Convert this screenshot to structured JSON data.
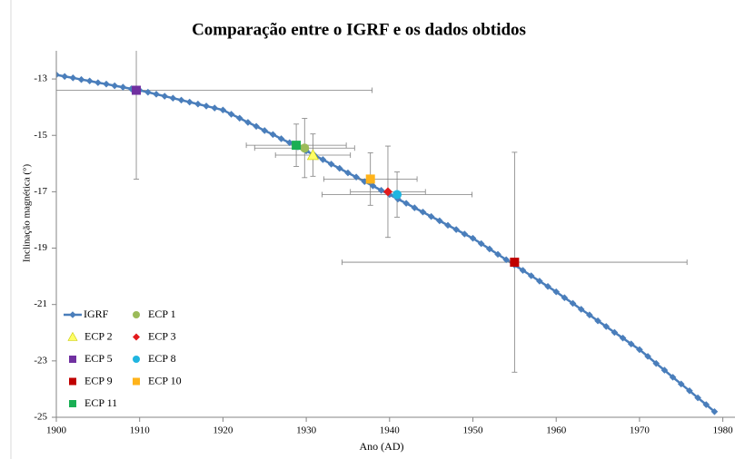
{
  "chart_data": {
    "type": "scatter",
    "title": "Comparação entre o IGRF e os dados obtidos",
    "xlabel": "Ano (AD)",
    "ylabel": "Inclinação magnética (°)",
    "xlim": [
      1900,
      1980
    ],
    "xticks": [
      1900,
      1910,
      1920,
      1930,
      1940,
      1950,
      1960,
      1970,
      1980
    ],
    "ylim": [
      -25,
      -12
    ],
    "yticks": [
      -25,
      -23,
      -21,
      -19,
      -17,
      -15,
      -13
    ],
    "legend": "lower left",
    "series": [
      {
        "name": "IGRF",
        "color": "#4a7ebb",
        "marker": "diamond",
        "line": true,
        "x": [
          1900,
          1901,
          1902,
          1903,
          1904,
          1905,
          1906,
          1907,
          1908,
          1909,
          1910,
          1911,
          1912,
          1913,
          1914,
          1915,
          1916,
          1917,
          1918,
          1919,
          1920,
          1921,
          1922,
          1923,
          1924,
          1925,
          1926,
          1927,
          1928,
          1929,
          1930,
          1931,
          1932,
          1933,
          1934,
          1935,
          1936,
          1937,
          1938,
          1939,
          1940,
          1941,
          1942,
          1943,
          1944,
          1945,
          1946,
          1947,
          1948,
          1949,
          1950,
          1951,
          1952,
          1953,
          1954,
          1955,
          1956,
          1957,
          1958,
          1959,
          1960,
          1961,
          1962,
          1963,
          1964,
          1965,
          1966,
          1967,
          1968,
          1969,
          1970,
          1971,
          1972,
          1973,
          1974,
          1975,
          1976,
          1977,
          1978,
          1979
        ],
        "values": [
          -12.85,
          -12.91,
          -12.96,
          -13.02,
          -13.07,
          -13.13,
          -13.18,
          -13.24,
          -13.29,
          -13.35,
          -13.4,
          -13.47,
          -13.54,
          -13.61,
          -13.68,
          -13.75,
          -13.82,
          -13.89,
          -13.96,
          -14.03,
          -14.1,
          -14.25,
          -14.39,
          -14.54,
          -14.68,
          -14.83,
          -14.97,
          -15.12,
          -15.26,
          -15.41,
          -15.55,
          -15.71,
          -15.86,
          -16.02,
          -16.17,
          -16.33,
          -16.48,
          -16.64,
          -16.79,
          -16.95,
          -17.1,
          -17.26,
          -17.41,
          -17.57,
          -17.72,
          -17.88,
          -18.03,
          -18.19,
          -18.34,
          -18.5,
          -18.65,
          -18.84,
          -19.03,
          -19.22,
          -19.41,
          -19.6,
          -19.79,
          -19.98,
          -20.17,
          -20.36,
          -20.55,
          -20.76,
          -20.96,
          -21.17,
          -21.37,
          -21.58,
          -21.78,
          -21.99,
          -22.19,
          -22.4,
          -22.6,
          -22.84,
          -23.09,
          -23.33,
          -23.58,
          -23.82,
          -24.06,
          -24.31,
          -24.55,
          -24.8
        ]
      },
      {
        "name": "ECP 1",
        "color": "#9bbb59",
        "marker": "circle",
        "x": [
          1929.8
        ],
        "values": [
          -15.45
        ],
        "xerr": [
          6
        ],
        "yerr": [
          1.05
        ]
      },
      {
        "name": "ECP 2",
        "color": "#ffff66",
        "marker": "triangle",
        "x": [
          1930.8
        ],
        "values": [
          -15.7
        ],
        "xerr": [
          4.5
        ],
        "yerr": [
          0.75
        ]
      },
      {
        "name": "ECP 3",
        "color": "#e31a1c",
        "marker": "diamond",
        "x": [
          1939.8
        ],
        "values": [
          -17.0
        ],
        "xerr": [
          4.5
        ],
        "yerr": [
          1.62
        ]
      },
      {
        "name": "ECP 5",
        "color": "#7030a0",
        "marker": "square",
        "x": [
          1909.6
        ],
        "values": [
          -13.4
        ],
        "xerr": [
          28.3
        ],
        "yerr": [
          3.15
        ]
      },
      {
        "name": "ECP 8",
        "color": "#1fb5e0",
        "marker": "circle",
        "x": [
          1940.9
        ],
        "values": [
          -17.1
        ],
        "xerr": [
          9
        ],
        "yerr": [
          0.8
        ]
      },
      {
        "name": "ECP 9",
        "color": "#c00000",
        "marker": "square",
        "x": [
          1955.0
        ],
        "values": [
          -19.5
        ],
        "xerr": [
          20.7
        ],
        "yerr": [
          3.9
        ]
      },
      {
        "name": "ECP 10",
        "color": "#ffb31a",
        "marker": "square",
        "x": [
          1937.7
        ],
        "values": [
          -16.55
        ],
        "xerr": [
          5.6
        ],
        "yerr": [
          0.93
        ]
      },
      {
        "name": "ECP 11",
        "color": "#1aaf54",
        "marker": "square",
        "x": [
          1928.8
        ],
        "values": [
          -15.35
        ],
        "xerr": [
          6
        ],
        "yerr": [
          0.75
        ]
      }
    ]
  }
}
